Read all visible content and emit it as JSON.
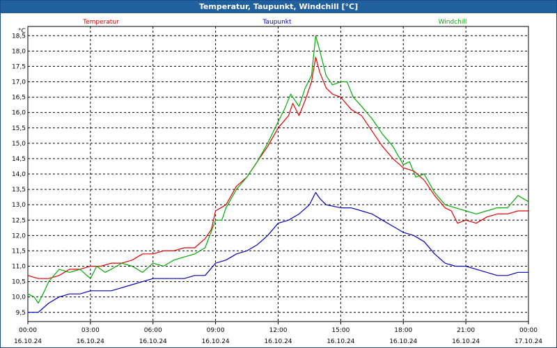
{
  "window": {
    "title": "Temperatur, Taupunkt, Windchill [°C]"
  },
  "chart_data": {
    "type": "line",
    "title": "Temperatur, Taupunkt, Windchill [°C]",
    "ylabel": "°C",
    "ylim": [
      9.2,
      18.8
    ],
    "xlim": [
      0,
      24
    ],
    "grid": true,
    "legend_placement": "top",
    "y_ticks": [
      "9,5",
      "10,0",
      "10,5",
      "11,0",
      "11,5",
      "12,0",
      "12,5",
      "13,0",
      "13,5",
      "14,0",
      "14,5",
      "15,0",
      "15,5",
      "16,0",
      "16,5",
      "17,0",
      "17,5",
      "18,0",
      "18,5"
    ],
    "x_ticks": [
      {
        "time": "00:00",
        "date": "16.10.24"
      },
      {
        "time": "03:00",
        "date": "16.10.24"
      },
      {
        "time": "06:00",
        "date": "16.10.24"
      },
      {
        "time": "09:00",
        "date": "16.10.24"
      },
      {
        "time": "12:00",
        "date": "16.10.24"
      },
      {
        "time": "15:00",
        "date": "16.10.24"
      },
      {
        "time": "18:00",
        "date": "16.10.24"
      },
      {
        "time": "21:00",
        "date": "16.10.24"
      },
      {
        "time": "00:00",
        "date": "17.10.24"
      }
    ],
    "series": [
      {
        "name": "Temperatur",
        "color": "#dd0000",
        "points": [
          [
            0,
            10.7
          ],
          [
            0.5,
            10.6
          ],
          [
            1,
            10.6
          ],
          [
            1.5,
            10.7
          ],
          [
            2,
            10.9
          ],
          [
            2.5,
            10.9
          ],
          [
            3,
            11.0
          ],
          [
            3.5,
            11.0
          ],
          [
            4,
            11.1
          ],
          [
            4.5,
            11.1
          ],
          [
            5,
            11.2
          ],
          [
            5.5,
            11.4
          ],
          [
            6,
            11.4
          ],
          [
            6.5,
            11.5
          ],
          [
            7,
            11.5
          ],
          [
            7.5,
            11.6
          ],
          [
            8,
            11.6
          ],
          [
            8.5,
            11.9
          ],
          [
            8.8,
            12.2
          ],
          [
            9,
            12.8
          ],
          [
            9.5,
            13.0
          ],
          [
            10,
            13.6
          ],
          [
            10.5,
            13.9
          ],
          [
            11,
            14.4
          ],
          [
            11.5,
            14.9
          ],
          [
            12,
            15.5
          ],
          [
            12.5,
            15.9
          ],
          [
            12.7,
            16.3
          ],
          [
            13,
            15.9
          ],
          [
            13.3,
            16.4
          ],
          [
            13.6,
            17.0
          ],
          [
            13.8,
            17.8
          ],
          [
            14,
            17.3
          ],
          [
            14.3,
            16.8
          ],
          [
            14.6,
            16.6
          ],
          [
            15,
            16.5
          ],
          [
            15.5,
            16.1
          ],
          [
            16,
            15.9
          ],
          [
            16.5,
            15.4
          ],
          [
            17,
            14.9
          ],
          [
            17.5,
            14.5
          ],
          [
            18,
            14.2
          ],
          [
            18.5,
            14.1
          ],
          [
            19,
            13.8
          ],
          [
            19.5,
            13.3
          ],
          [
            20,
            12.9
          ],
          [
            20.3,
            12.8
          ],
          [
            20.6,
            12.4
          ],
          [
            21,
            12.5
          ],
          [
            21.5,
            12.4
          ],
          [
            22,
            12.6
          ],
          [
            22.5,
            12.7
          ],
          [
            23,
            12.7
          ],
          [
            23.5,
            12.8
          ],
          [
            24,
            12.8
          ]
        ]
      },
      {
        "name": "Taupunkt",
        "color": "#0000bb",
        "points": [
          [
            0,
            9.5
          ],
          [
            0.5,
            9.5
          ],
          [
            1,
            9.8
          ],
          [
            1.5,
            10.0
          ],
          [
            2,
            10.1
          ],
          [
            2.5,
            10.1
          ],
          [
            3,
            10.2
          ],
          [
            3.5,
            10.2
          ],
          [
            4,
            10.2
          ],
          [
            4.5,
            10.3
          ],
          [
            5,
            10.4
          ],
          [
            5.5,
            10.5
          ],
          [
            6,
            10.6
          ],
          [
            6.5,
            10.6
          ],
          [
            7,
            10.6
          ],
          [
            7.5,
            10.6
          ],
          [
            8,
            10.7
          ],
          [
            8.5,
            10.7
          ],
          [
            9,
            11.1
          ],
          [
            9.5,
            11.2
          ],
          [
            10,
            11.4
          ],
          [
            10.5,
            11.5
          ],
          [
            11,
            11.7
          ],
          [
            11.5,
            12.0
          ],
          [
            12,
            12.4
          ],
          [
            12.5,
            12.5
          ],
          [
            13,
            12.7
          ],
          [
            13.5,
            13.0
          ],
          [
            13.8,
            13.4
          ],
          [
            14,
            13.2
          ],
          [
            14.3,
            13.0
          ],
          [
            15,
            12.9
          ],
          [
            15.5,
            12.9
          ],
          [
            16,
            12.8
          ],
          [
            16.5,
            12.7
          ],
          [
            17,
            12.5
          ],
          [
            17.5,
            12.3
          ],
          [
            18,
            12.1
          ],
          [
            18.5,
            12.0
          ],
          [
            19,
            11.8
          ],
          [
            19.5,
            11.4
          ],
          [
            20,
            11.1
          ],
          [
            20.5,
            11.0
          ],
          [
            21,
            11.0
          ],
          [
            21.5,
            10.9
          ],
          [
            22,
            10.8
          ],
          [
            22.5,
            10.7
          ],
          [
            23,
            10.7
          ],
          [
            23.5,
            10.8
          ],
          [
            24,
            10.8
          ]
        ]
      },
      {
        "name": "Windchill",
        "color": "#00aa00",
        "points": [
          [
            0,
            10.1
          ],
          [
            0.3,
            10.0
          ],
          [
            0.5,
            9.8
          ],
          [
            0.8,
            10.2
          ],
          [
            1,
            10.5
          ],
          [
            1.5,
            10.9
          ],
          [
            2,
            10.8
          ],
          [
            2.5,
            10.9
          ],
          [
            3,
            10.6
          ],
          [
            3.3,
            11.0
          ],
          [
            3.7,
            10.8
          ],
          [
            4,
            10.9
          ],
          [
            4.5,
            11.1
          ],
          [
            5,
            11.0
          ],
          [
            5.5,
            10.8
          ],
          [
            6,
            11.1
          ],
          [
            6.5,
            11.0
          ],
          [
            7,
            11.2
          ],
          [
            7.5,
            11.3
          ],
          [
            8,
            11.4
          ],
          [
            8.5,
            11.6
          ],
          [
            9,
            12.5
          ],
          [
            9.3,
            12.5
          ],
          [
            9.5,
            12.9
          ],
          [
            10,
            13.5
          ],
          [
            10.5,
            13.9
          ],
          [
            11,
            14.4
          ],
          [
            11.5,
            15.0
          ],
          [
            12,
            15.7
          ],
          [
            12.3,
            16.1
          ],
          [
            12.6,
            16.6
          ],
          [
            13,
            16.2
          ],
          [
            13.3,
            16.8
          ],
          [
            13.6,
            17.2
          ],
          [
            13.8,
            18.5
          ],
          [
            14,
            18.0
          ],
          [
            14.3,
            17.2
          ],
          [
            14.6,
            16.9
          ],
          [
            15,
            17.0
          ],
          [
            15.3,
            17.0
          ],
          [
            15.6,
            16.5
          ],
          [
            16,
            16.2
          ],
          [
            16.5,
            15.8
          ],
          [
            17,
            15.3
          ],
          [
            17.5,
            14.9
          ],
          [
            18,
            14.3
          ],
          [
            18.3,
            14.4
          ],
          [
            18.6,
            13.9
          ],
          [
            19,
            14.0
          ],
          [
            19.5,
            13.4
          ],
          [
            20,
            13.0
          ],
          [
            20.5,
            12.9
          ],
          [
            21,
            12.8
          ],
          [
            21.5,
            12.7
          ],
          [
            22,
            12.8
          ],
          [
            22.5,
            12.9
          ],
          [
            23,
            12.9
          ],
          [
            23.5,
            13.3
          ],
          [
            24,
            13.1
          ]
        ]
      }
    ]
  }
}
